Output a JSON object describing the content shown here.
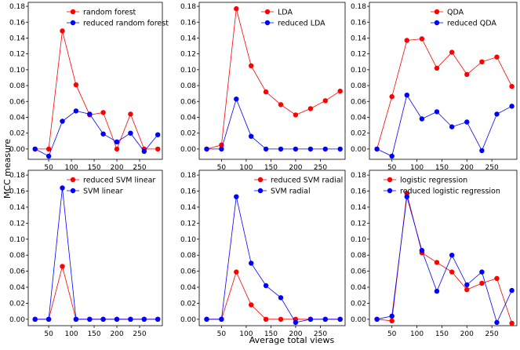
{
  "figure": {
    "xlabel": "Average total views",
    "ylabel": "MCC measure"
  },
  "colors": {
    "primary": "#ff0000",
    "secondary": "#0000ff"
  },
  "chart_data": [
    {
      "type": "line",
      "x": [
        20,
        50,
        80,
        110,
        140,
        170,
        200,
        230,
        260,
        290
      ],
      "series": [
        {
          "name": "random forest",
          "color": "#ff0000",
          "values": [
            0.0,
            0.0,
            0.149,
            0.081,
            0.043,
            0.046,
            0.0,
            0.044,
            0.0,
            0.0
          ]
        },
        {
          "name": "reduced random forest",
          "color": "#0000ff",
          "values": [
            0.0,
            -0.009,
            0.035,
            0.048,
            0.044,
            0.019,
            0.009,
            0.02,
            -0.003,
            0.018
          ]
        }
      ],
      "xticks": [
        "50",
        "100",
        "150",
        "200",
        "250"
      ],
      "yticks": [
        "0.00",
        "0.02",
        "0.04",
        "0.06",
        "0.08",
        "0.10",
        "0.12",
        "0.14",
        "0.16",
        "0.18"
      ],
      "xlim": [
        5,
        300
      ],
      "ylim": [
        -0.013,
        0.185
      ],
      "legend_position": "top-right"
    },
    {
      "type": "line",
      "x": [
        20,
        50,
        80,
        110,
        140,
        170,
        200,
        230,
        260,
        290
      ],
      "series": [
        {
          "name": "LDA",
          "color": "#ff0000",
          "values": [
            0.0,
            0.005,
            0.177,
            0.105,
            0.072,
            0.056,
            0.043,
            0.051,
            0.061,
            0.073
          ]
        },
        {
          "name": "reduced LDA",
          "color": "#0000ff",
          "values": [
            0.0,
            0.0,
            0.063,
            0.016,
            0.0,
            0.0,
            0.0,
            0.0,
            0.0,
            0.0
          ]
        }
      ],
      "xticks": [
        "50",
        "100",
        "150",
        "200",
        "250"
      ],
      "yticks": [
        "0.00",
        "0.02",
        "0.04",
        "0.06",
        "0.08",
        "0.10",
        "0.12",
        "0.14",
        "0.16",
        "0.18"
      ],
      "xlim": [
        5,
        300
      ],
      "ylim": [
        -0.013,
        0.185
      ],
      "legend_position": "top-right"
    },
    {
      "type": "line",
      "x": [
        20,
        50,
        80,
        110,
        140,
        170,
        200,
        230,
        260,
        290
      ],
      "series": [
        {
          "name": "QDA",
          "color": "#ff0000",
          "values": [
            0.0,
            0.066,
            0.137,
            0.139,
            0.102,
            0.122,
            0.094,
            0.11,
            0.116,
            0.079
          ]
        },
        {
          "name": "reduced QDA",
          "color": "#0000ff",
          "values": [
            0.0,
            -0.009,
            0.068,
            0.038,
            0.047,
            0.028,
            0.034,
            -0.002,
            0.044,
            0.054
          ]
        }
      ],
      "xticks": [
        "50",
        "100",
        "150",
        "200",
        "250"
      ],
      "yticks": [
        "0.00",
        "0.02",
        "0.04",
        "0.06",
        "0.08",
        "0.10",
        "0.12",
        "0.14",
        "0.16",
        "0.18"
      ],
      "xlim": [
        5,
        300
      ],
      "ylim": [
        -0.013,
        0.185
      ],
      "legend_position": "top-right"
    },
    {
      "type": "line",
      "x": [
        20,
        50,
        80,
        110,
        140,
        170,
        200,
        230,
        260,
        290
      ],
      "series": [
        {
          "name": "reduced SVM linear",
          "color": "#ff0000",
          "values": [
            0.0,
            0.0,
            0.066,
            0.0,
            0.0,
            0.0,
            0.0,
            0.0,
            0.0,
            0.0
          ]
        },
        {
          "name": "SVM linear",
          "color": "#0000ff",
          "values": [
            0.0,
            0.0,
            0.164,
            0.0,
            0.0,
            0.0,
            0.0,
            0.0,
            0.0,
            0.0
          ]
        }
      ],
      "xticks": [
        "50",
        "100",
        "150",
        "200",
        "250"
      ],
      "yticks": [
        "0.00",
        "0.02",
        "0.04",
        "0.06",
        "0.08",
        "0.10",
        "0.12",
        "0.14",
        "0.16",
        "0.18"
      ],
      "xlim": [
        5,
        300
      ],
      "ylim": [
        -0.008,
        0.186
      ],
      "legend_position": "top-right"
    },
    {
      "type": "line",
      "x": [
        20,
        50,
        80,
        110,
        140,
        170,
        200,
        230,
        260,
        290
      ],
      "series": [
        {
          "name": "reduced SVM radial",
          "color": "#ff0000",
          "values": [
            0.0,
            0.0,
            0.059,
            0.018,
            0.0,
            0.0,
            0.0,
            0.0,
            0.0,
            0.0
          ]
        },
        {
          "name": "SVM radial",
          "color": "#0000ff",
          "values": [
            0.0,
            0.0,
            0.153,
            0.07,
            0.042,
            0.027,
            -0.004,
            0.0,
            0.0,
            0.0
          ]
        }
      ],
      "xticks": [
        "50",
        "100",
        "150",
        "200",
        "250"
      ],
      "yticks": [
        "0.00",
        "0.02",
        "0.04",
        "0.06",
        "0.08",
        "0.10",
        "0.12",
        "0.14",
        "0.16",
        "0.18"
      ],
      "xlim": [
        5,
        300
      ],
      "ylim": [
        -0.008,
        0.186
      ],
      "legend_position": "top-right"
    },
    {
      "type": "line",
      "x": [
        20,
        50,
        80,
        110,
        140,
        170,
        200,
        230,
        260,
        290
      ],
      "series": [
        {
          "name": "logistic regression",
          "color": "#ff0000",
          "values": [
            0.0,
            -0.002,
            0.157,
            0.083,
            0.071,
            0.059,
            0.037,
            0.045,
            0.051,
            -0.005
          ]
        },
        {
          "name": "reduced logistic regression",
          "color": "#0000ff",
          "values": [
            0.0,
            0.004,
            0.153,
            0.086,
            0.035,
            0.08,
            0.043,
            0.059,
            -0.004,
            0.036
          ]
        }
      ],
      "xticks": [
        "50",
        "100",
        "150",
        "200",
        "250"
      ],
      "yticks": [
        "0.00",
        "0.02",
        "0.04",
        "0.06",
        "0.08",
        "0.10",
        "0.12",
        "0.14",
        "0.16",
        "0.18"
      ],
      "xlim": [
        5,
        300
      ],
      "ylim": [
        -0.008,
        0.186
      ],
      "legend_position": "top-right"
    }
  ]
}
